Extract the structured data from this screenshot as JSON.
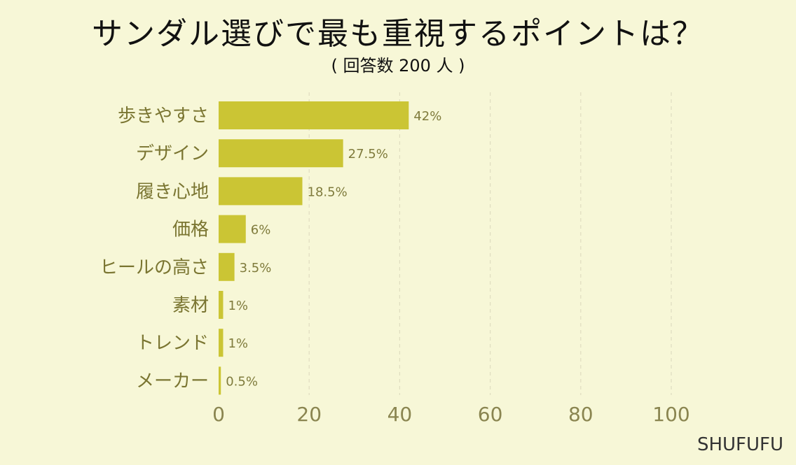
{
  "chart_data": {
    "type": "bar",
    "orientation": "horizontal",
    "title": "サンダル選びで最も重視するポイントは？",
    "subtitle": "( 回答数 200 人 )",
    "categories": [
      "歩きやすさ",
      "デザイン",
      "履き心地",
      "価格",
      "ヒールの高さ",
      "素材",
      "トレンド",
      "メーカー"
    ],
    "values": [
      42,
      27.5,
      18.5,
      6,
      3.5,
      1,
      1,
      0.5
    ],
    "value_labels": [
      "42%",
      "27.5%",
      "18.5%",
      "6%",
      "3.5%",
      "1%",
      "1%",
      "0.5%"
    ],
    "xlim": [
      0,
      100
    ],
    "x_ticks": [
      "0",
      "20",
      "40",
      "60",
      "80",
      "100"
    ],
    "grid": "vertical dashed",
    "colors": {
      "bar": "#cbc534",
      "background": "#f7f7d7",
      "grid": "#dfddc0"
    }
  },
  "brand": "SHUFUFU"
}
